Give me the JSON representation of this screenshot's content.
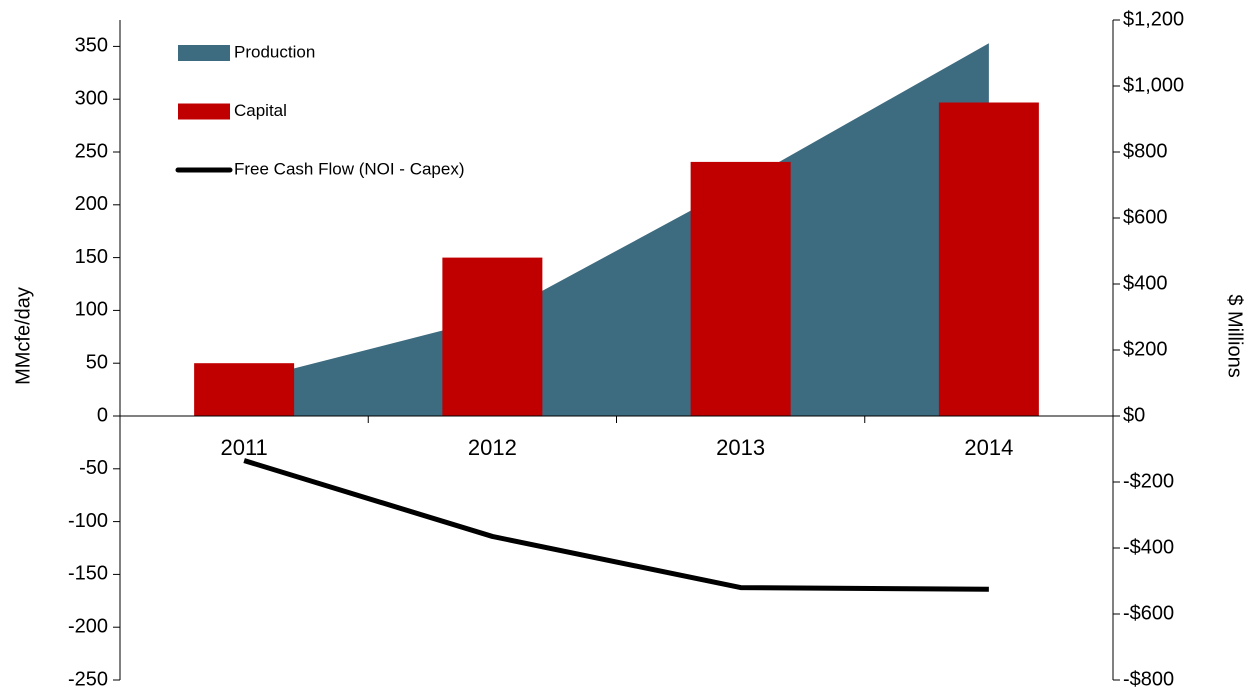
{
  "chart_data": {
    "type": "combo",
    "categories": [
      "2011",
      "2012",
      "2013",
      "2014"
    ],
    "ylabel": "MMcfe/day",
    "y2label": "$ Millions",
    "ylim": [
      -250,
      375
    ],
    "yticks": [
      -250,
      -200,
      -150,
      -100,
      -50,
      0,
      50,
      100,
      150,
      200,
      250,
      300,
      350
    ],
    "y2lim": [
      -800,
      1200
    ],
    "y2ticks": [
      {
        "value": -800,
        "label": "-$800"
      },
      {
        "value": -600,
        "label": "-$600"
      },
      {
        "value": -400,
        "label": "-$400"
      },
      {
        "value": -200,
        "label": "-$200"
      },
      {
        "value": 0,
        "label": "$0"
      },
      {
        "value": 200,
        "label": "$200"
      },
      {
        "value": 400,
        "label": "$400"
      },
      {
        "value": 600,
        "label": "$600"
      },
      {
        "value": 800,
        "label": "$800"
      },
      {
        "value": 1000,
        "label": "$1,000"
      },
      {
        "value": 1200,
        "label": "$1,200"
      }
    ],
    "legend": "upper left",
    "series": [
      {
        "name": "Production",
        "type": "area",
        "axis": "y",
        "color": "#3d6b80",
        "values": [
          33,
          93,
          220,
          353
        ]
      },
      {
        "name": "Capital",
        "type": "bar",
        "axis": "y2",
        "color": "#c00000",
        "values": [
          160,
          480,
          770,
          950
        ]
      },
      {
        "name": "Free Cash Flow (NOI - Capex)",
        "type": "line",
        "axis": "y2",
        "color": "#000000",
        "values": [
          -135,
          -365,
          -520,
          -525
        ]
      }
    ]
  }
}
